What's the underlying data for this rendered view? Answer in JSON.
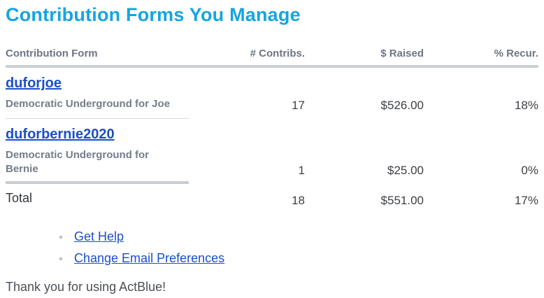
{
  "page": {
    "title": "Contribution Forms You Manage",
    "thanks": "Thank you for using ActBlue!"
  },
  "table": {
    "headers": [
      "Contribution Form",
      "# Contribs.",
      "$ Raised",
      "% Recur."
    ],
    "rows": [
      {
        "form_slug": "duforjoe",
        "form_name": "Democratic Underground for Joe",
        "contribs": "17",
        "raised": "$526.00",
        "recurring": "18%"
      },
      {
        "form_slug": "duforbernie2020",
        "form_name": "Democratic Underground for Bernie",
        "contribs": "1",
        "raised": "$25.00",
        "recurring": "0%"
      }
    ],
    "total": {
      "label": "Total",
      "contribs": "18",
      "raised": "$551.00",
      "recurring": "17%"
    }
  },
  "links": [
    {
      "label": "Get Help"
    },
    {
      "label": "Change Email Preferences"
    }
  ],
  "colors": {
    "title": "#15a5e0",
    "link": "#1d4ec9",
    "header-text": "#6e7585",
    "desc-text": "#757d88",
    "number-text": "#3d4045",
    "total-text": "#33363a",
    "thanks-text": "#4b4f54",
    "header-divider": "#ccd0d8",
    "thin-divider": "#d9dadb",
    "thick-divider": "#c7ccd4",
    "bullet": "#c3c3c3"
  }
}
